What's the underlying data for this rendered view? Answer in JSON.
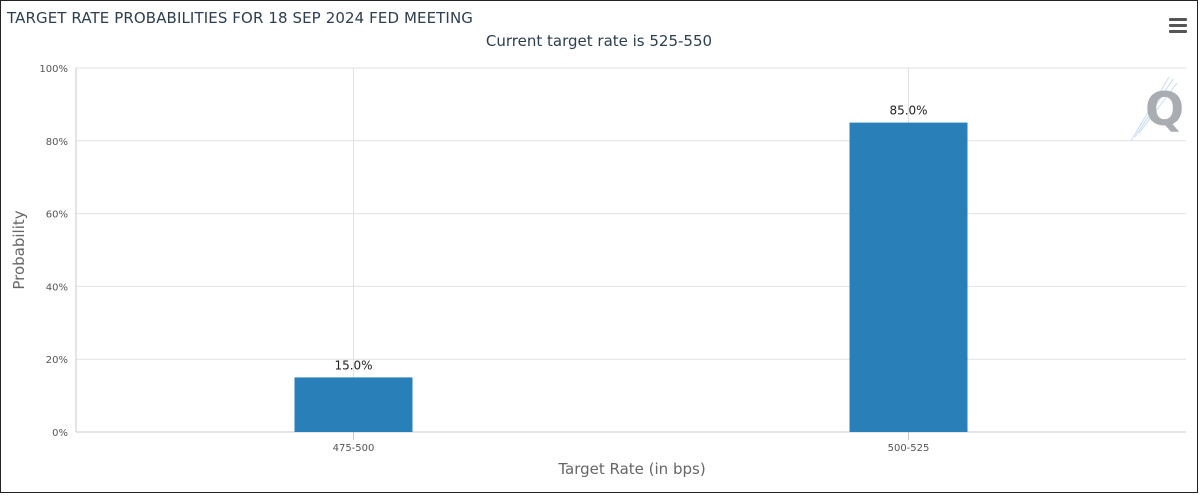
{
  "header": {
    "title": "TARGET RATE PROBABILITIES FOR 18 SEP 2024 FED MEETING",
    "subtitle": "Current target rate is 525-550"
  },
  "colors": {
    "bar": "#2980b9",
    "grid": "#e2e2e2",
    "axis": "#c8c8c8",
    "logo": "#a9adb1"
  },
  "icons": {
    "menu": "hamburger-menu-icon",
    "logo": "q-logo-icon"
  },
  "chart_data": {
    "type": "bar",
    "categories": [
      "475-500",
      "500-525"
    ],
    "values": [
      15.0,
      85.0
    ],
    "data_labels": [
      "15.0%",
      "85.0%"
    ],
    "xlabel": "Target Rate (in bps)",
    "ylabel": "Probability",
    "ylim": [
      0,
      100
    ],
    "yticks": [
      0,
      20,
      40,
      60,
      80,
      100
    ],
    "ytick_labels": [
      "0%",
      "20%",
      "40%",
      "60%",
      "80%",
      "100%"
    ],
    "grid": true
  }
}
